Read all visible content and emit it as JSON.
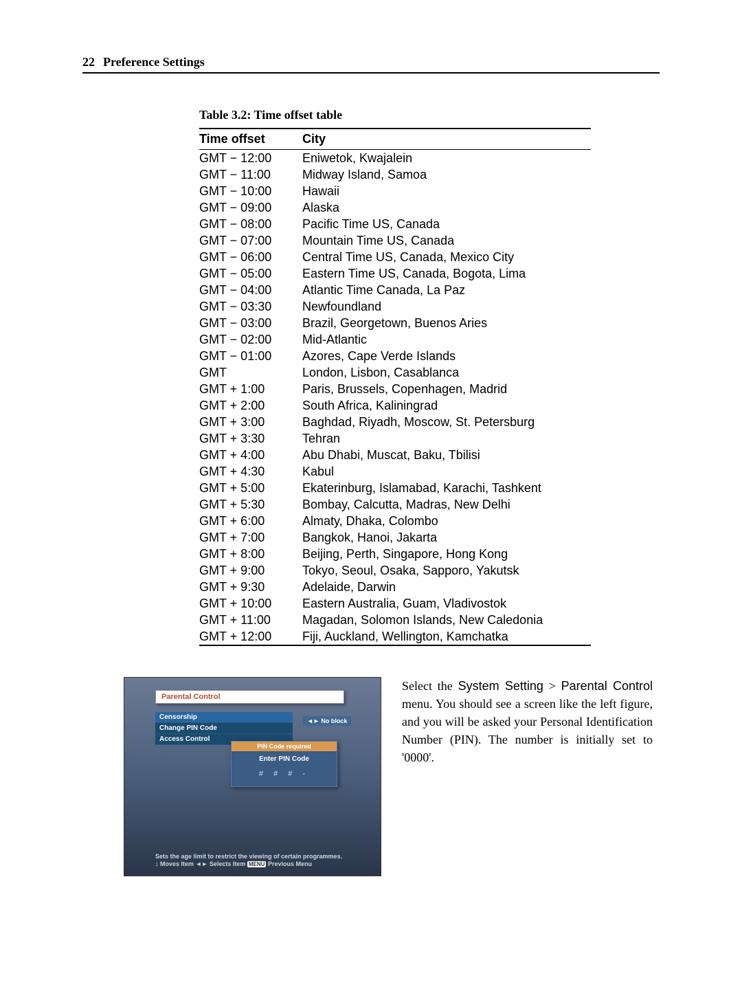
{
  "header": {
    "page_number": "22",
    "section_title": "Preference Settings"
  },
  "table": {
    "caption": "Table 3.2: Time offset table",
    "columns": [
      "Time offset",
      "City"
    ],
    "col_widths": [
      "150px",
      "auto"
    ],
    "rows": [
      {
        "offset": "GMT − 12:00",
        "city": "Eniwetok, Kwajalein"
      },
      {
        "offset": "GMT − 11:00",
        "city": "Midway Island, Samoa"
      },
      {
        "offset": "GMT − 10:00",
        "city": "Hawaii"
      },
      {
        "offset": "GMT − 09:00",
        "city": "Alaska"
      },
      {
        "offset": "GMT − 08:00",
        "city": "Pacific Time US, Canada"
      },
      {
        "offset": "GMT − 07:00",
        "city": "Mountain Time US, Canada"
      },
      {
        "offset": "GMT − 06:00",
        "city": "Central Time US, Canada, Mexico City"
      },
      {
        "offset": "GMT − 05:00",
        "city": "Eastern Time US, Canada, Bogota, Lima"
      },
      {
        "offset": "GMT − 04:00",
        "city": "Atlantic Time Canada, La Paz"
      },
      {
        "offset": "GMT − 03:30",
        "city": "Newfoundland"
      },
      {
        "offset": "GMT − 03:00",
        "city": "Brazil, Georgetown, Buenos Aries"
      },
      {
        "offset": "GMT − 02:00",
        "city": "Mid-Atlantic"
      },
      {
        "offset": "GMT − 01:00",
        "city": "Azores, Cape Verde Islands"
      },
      {
        "offset": "GMT",
        "city": "London, Lisbon, Casablanca"
      },
      {
        "offset": "GMT + 1:00",
        "city": "Paris, Brussels, Copenhagen, Madrid"
      },
      {
        "offset": "GMT + 2:00",
        "city": "South Africa, Kaliningrad"
      },
      {
        "offset": "GMT + 3:00",
        "city": "Baghdad, Riyadh, Moscow, St. Petersburg"
      },
      {
        "offset": "GMT + 3:30",
        "city": "Tehran"
      },
      {
        "offset": "GMT + 4:00",
        "city": "Abu Dhabi, Muscat, Baku, Tbilisi"
      },
      {
        "offset": "GMT + 4:30",
        "city": "Kabul"
      },
      {
        "offset": "GMT + 5:00",
        "city": "Ekaterinburg, Islamabad, Karachi, Tashkent"
      },
      {
        "offset": "GMT + 5:30",
        "city": "Bombay, Calcutta, Madras, New Delhi"
      },
      {
        "offset": "GMT + 6:00",
        "city": "Almaty, Dhaka, Colombo"
      },
      {
        "offset": "GMT + 7:00",
        "city": "Bangkok, Hanoi, Jakarta"
      },
      {
        "offset": "GMT + 8:00",
        "city": "Beijing, Perth, Singapore, Hong Kong"
      },
      {
        "offset": "GMT + 9:00",
        "city": "Tokyo, Seoul, Osaka, Sapporo, Yakutsk"
      },
      {
        "offset": "GMT + 9:30",
        "city": "Adelaide, Darwin"
      },
      {
        "offset": "GMT + 10:00",
        "city": "Eastern Australia, Guam, Vladivostok"
      },
      {
        "offset": "GMT + 11:00",
        "city": "Magadan, Solomon Islands, New Caledonia"
      },
      {
        "offset": "GMT + 12:00",
        "city": "Fiji, Auckland, Wellington, Kamchatka"
      }
    ],
    "header_font_family": "Arial",
    "body_font_family": "Arial",
    "border_color": "#000000",
    "font_size": 18
  },
  "ui": {
    "title": "Parental Control",
    "menu_items": [
      "Censorship",
      "Change PIN Code",
      "Access Control"
    ],
    "right_badge_icon": "◄►",
    "right_badge": "No block",
    "dialog": {
      "title": "PIN Code required",
      "label": "Enter PIN Code",
      "pin_display": "#  #  #  -"
    },
    "footer_line1": "Sets the age limit to restrict the viewing of certain programmes.",
    "footer_line2_prefix": "↕ Moves Item  ◄► Selects Item  ",
    "footer_line2_menu": "MENU",
    "footer_line2_suffix": " Previous Menu",
    "colors": {
      "bg_top": "#6b7a95",
      "bg_bottom": "#2a3548",
      "titlebar_bg": "#ffffff",
      "titlebar_text": "#b94b2e",
      "menu_bg": "#1a4a6e",
      "menu_active_bg": "#2866a0",
      "dialog_title_bg": "#d99a50"
    }
  },
  "paragraph": {
    "prefix": "Select the",
    "menu_path_1": "System Setting",
    "gt": ">",
    "menu_path_2": "Parental Control",
    "middle": "menu. You should see a screen like the left figure, and you will be asked your Personal Identification Number (PIN). The number is initially set to '0000'."
  }
}
